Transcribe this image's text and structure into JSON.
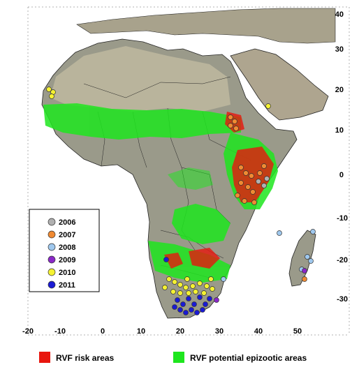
{
  "map": {
    "lon_ticks": [
      "-20",
      "-10",
      "0",
      "10",
      "20",
      "30",
      "40",
      "50"
    ],
    "lat_ticks": [
      "40",
      "30",
      "20",
      "10",
      "0",
      "-10",
      "-20",
      "-30"
    ],
    "ocean_color": "#ffffff",
    "land_color": "#9a9a8a",
    "desert_color": "#c9c2a8"
  },
  "year_legend": {
    "items": [
      {
        "label": "2006",
        "color": "#b0b0b0"
      },
      {
        "label": "2007",
        "color": "#f08a32"
      },
      {
        "label": "2008",
        "color": "#9fc8ee"
      },
      {
        "label": "2009",
        "color": "#8a28c8"
      },
      {
        "label": "2010",
        "color": "#f5f232"
      },
      {
        "label": "2011",
        "color": "#1a1ad4"
      }
    ]
  },
  "area_legend": {
    "risk": {
      "label": "RVF risk areas",
      "color": "#e8160e"
    },
    "epizootic": {
      "label": "RVF potential epizootic areas",
      "color": "#1ee61e"
    }
  }
}
